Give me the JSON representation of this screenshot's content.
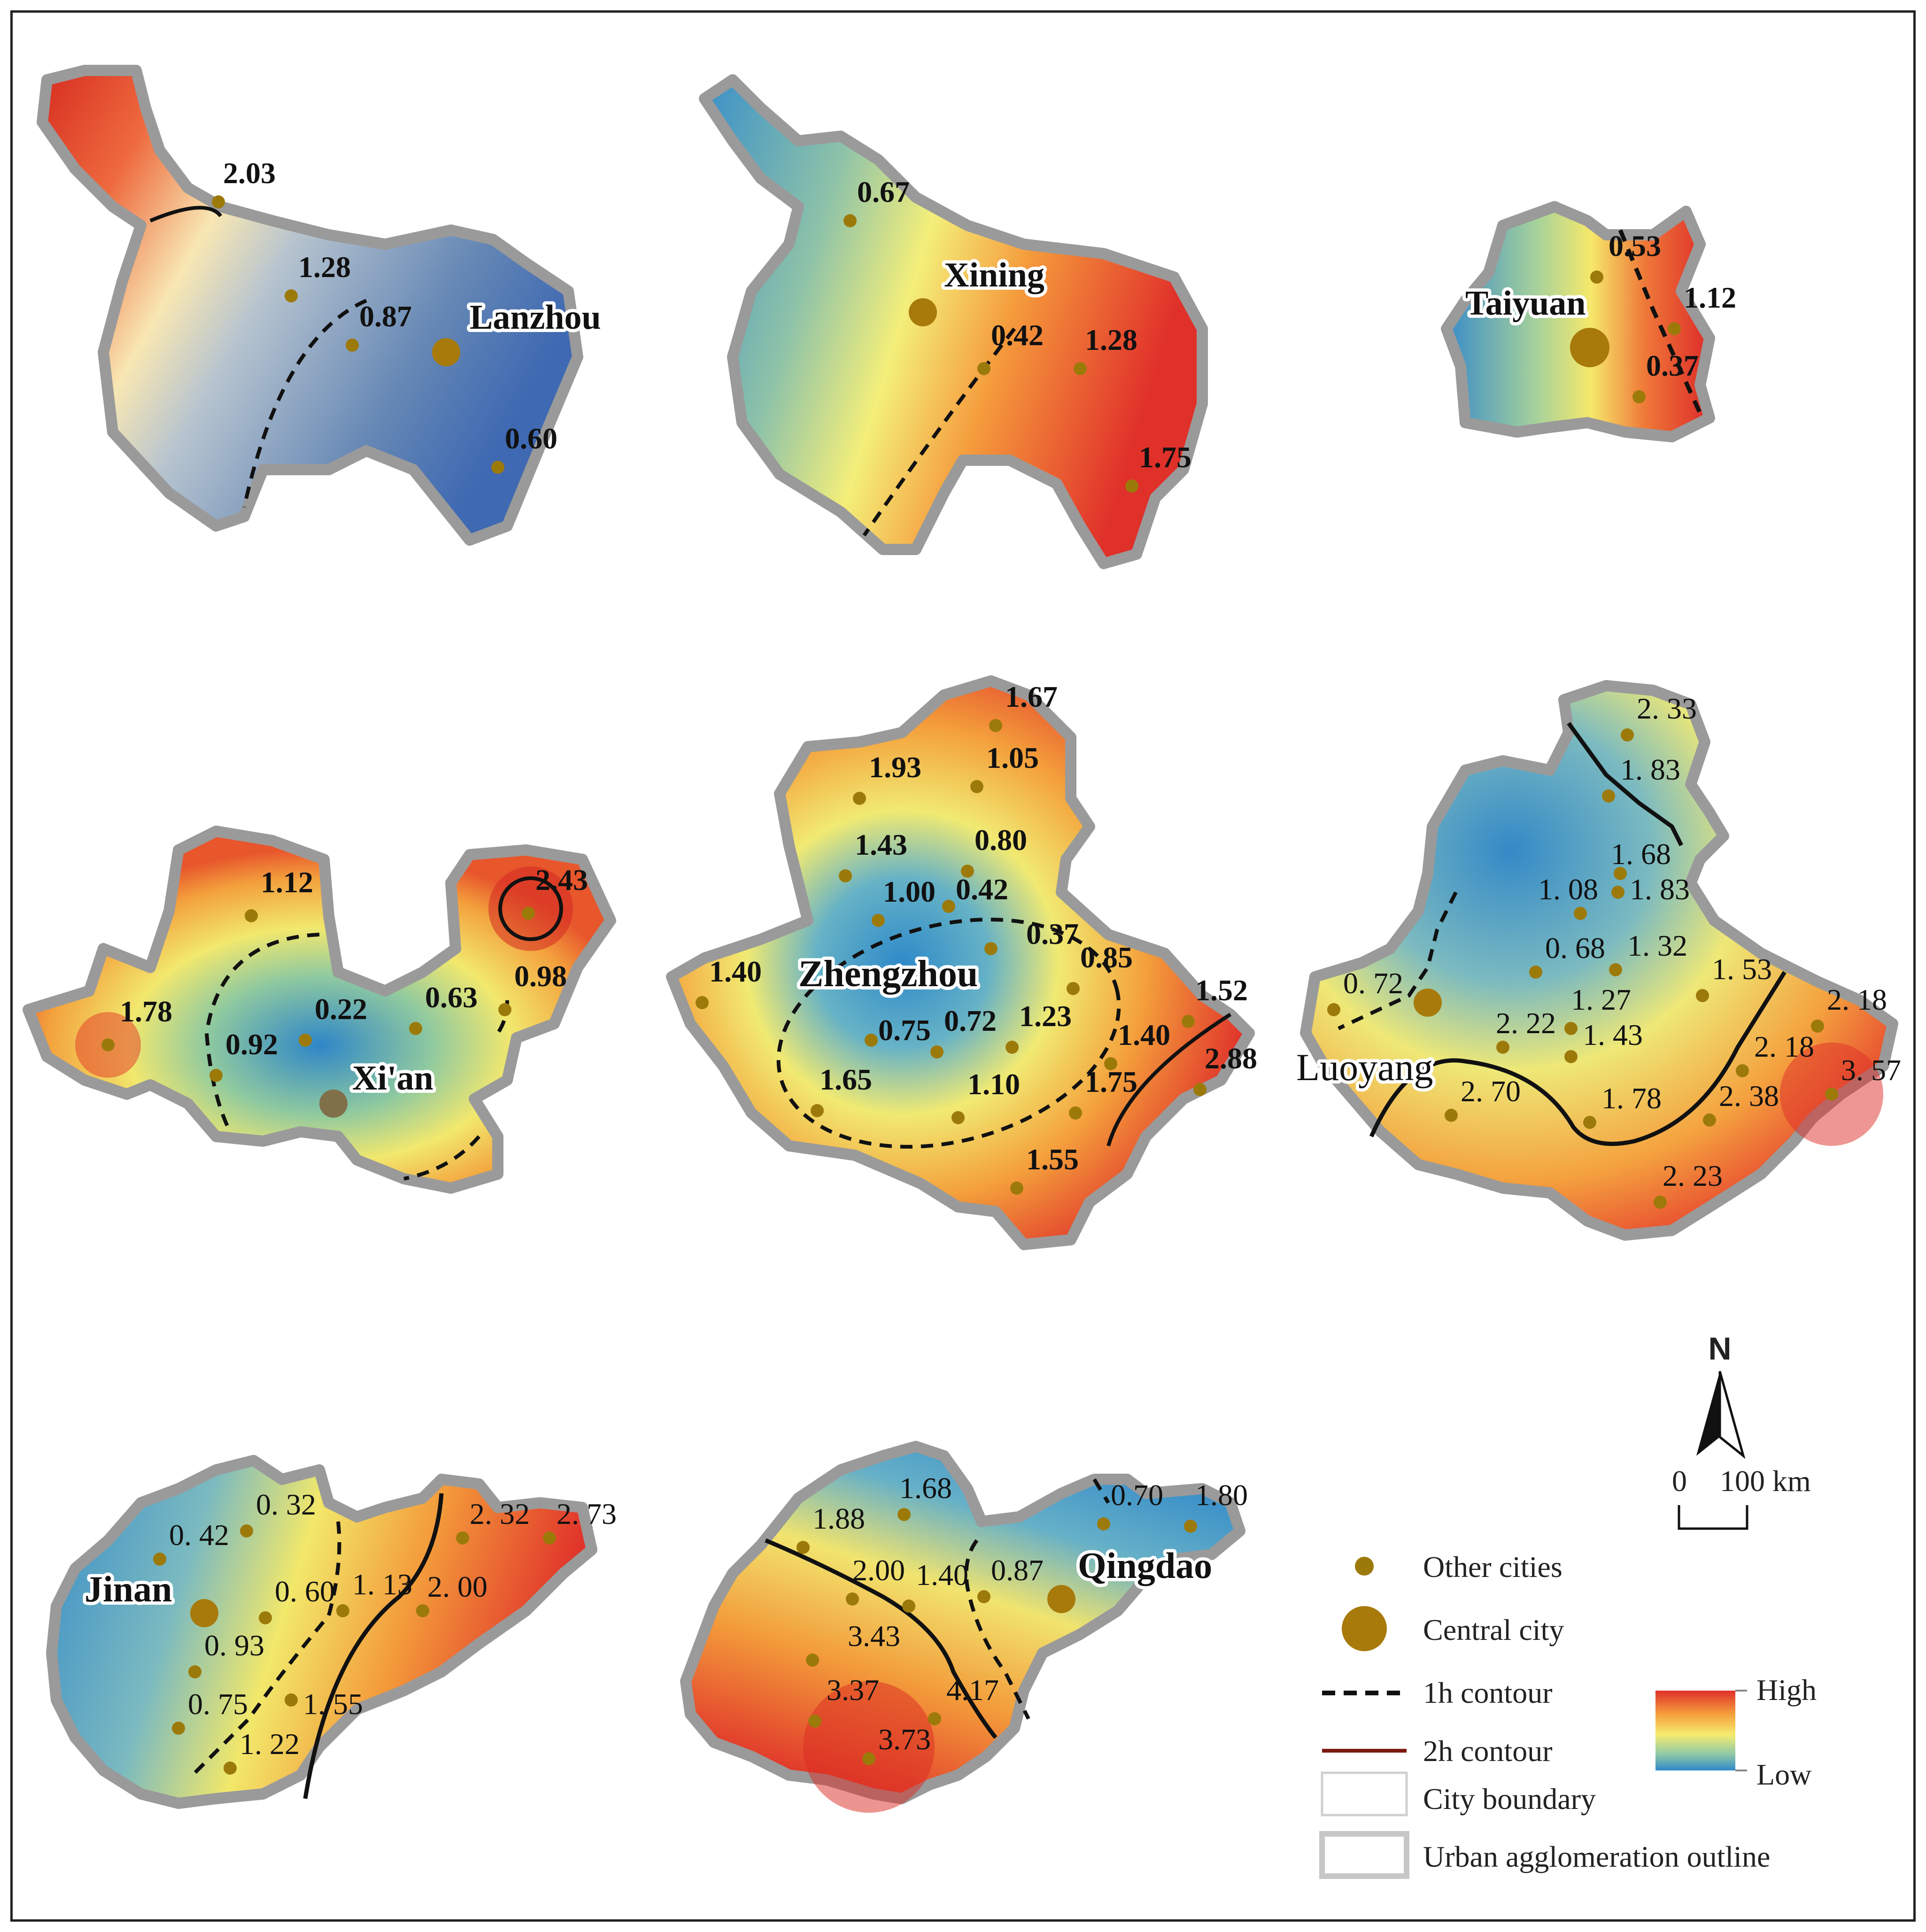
{
  "maps": [
    {
      "name": "Lanzhou",
      "values": [
        "2.03",
        "1.28",
        "0.87",
        "0.60"
      ]
    },
    {
      "name": "Xining",
      "values": [
        "0.67",
        "0.42",
        "1.28",
        "1.75"
      ]
    },
    {
      "name": "Taiyuan",
      "values": [
        "0.53",
        "1.12",
        "0.37"
      ]
    },
    {
      "name": "Xi'an",
      "values": [
        "1.12",
        "2.43",
        "1.78",
        "0.22",
        "0.63",
        "0.98",
        "0.92"
      ]
    },
    {
      "name": "Zhengzhou",
      "values": [
        "1.67",
        "1.93",
        "1.05",
        "1.43",
        "0.80",
        "1.00",
        "0.42",
        "0.37",
        "1.40",
        "0.85",
        "1.52",
        "0.75",
        "0.72",
        "1.23",
        "1.40",
        "2.88",
        "1.65",
        "1.10",
        "1.75",
        "1.55"
      ]
    },
    {
      "name": "Luoyang",
      "values": [
        "2. 33",
        "1. 83",
        "1. 68",
        "1. 08",
        "1. 83",
        "0. 68",
        "1. 32",
        "1. 53",
        "0. 72",
        "1. 27",
        "2. 18",
        "2. 22",
        "1. 43",
        "2. 18",
        "2. 70",
        "1. 78",
        "2. 38",
        "3. 57",
        "2. 23"
      ]
    },
    {
      "name": "Jinan",
      "values": [
        "0. 32",
        "2. 32",
        "2. 73",
        "0. 42",
        "0. 60",
        "1. 13",
        "2. 00",
        "0. 93",
        "0. 75",
        "1. 55",
        "1. 22"
      ]
    },
    {
      "name": "Qingdao",
      "values": [
        "1.68",
        "0.70",
        "1.80",
        "1.88",
        "2.00",
        "1.40",
        "0.87",
        "3.43",
        "3.37",
        "4.17",
        "3.73"
      ]
    }
  ],
  "north": {
    "label": "N"
  },
  "scale": {
    "zero": "0",
    "distance": "100 km"
  },
  "legend": {
    "other_cities": "Other cities",
    "central_city": "Central city",
    "contour_1h": "1h contour",
    "contour_2h": "2h contour",
    "city_boundary": "City boundary",
    "outline": "Urban agglomeration outline",
    "high": "High",
    "low": "Low"
  }
}
